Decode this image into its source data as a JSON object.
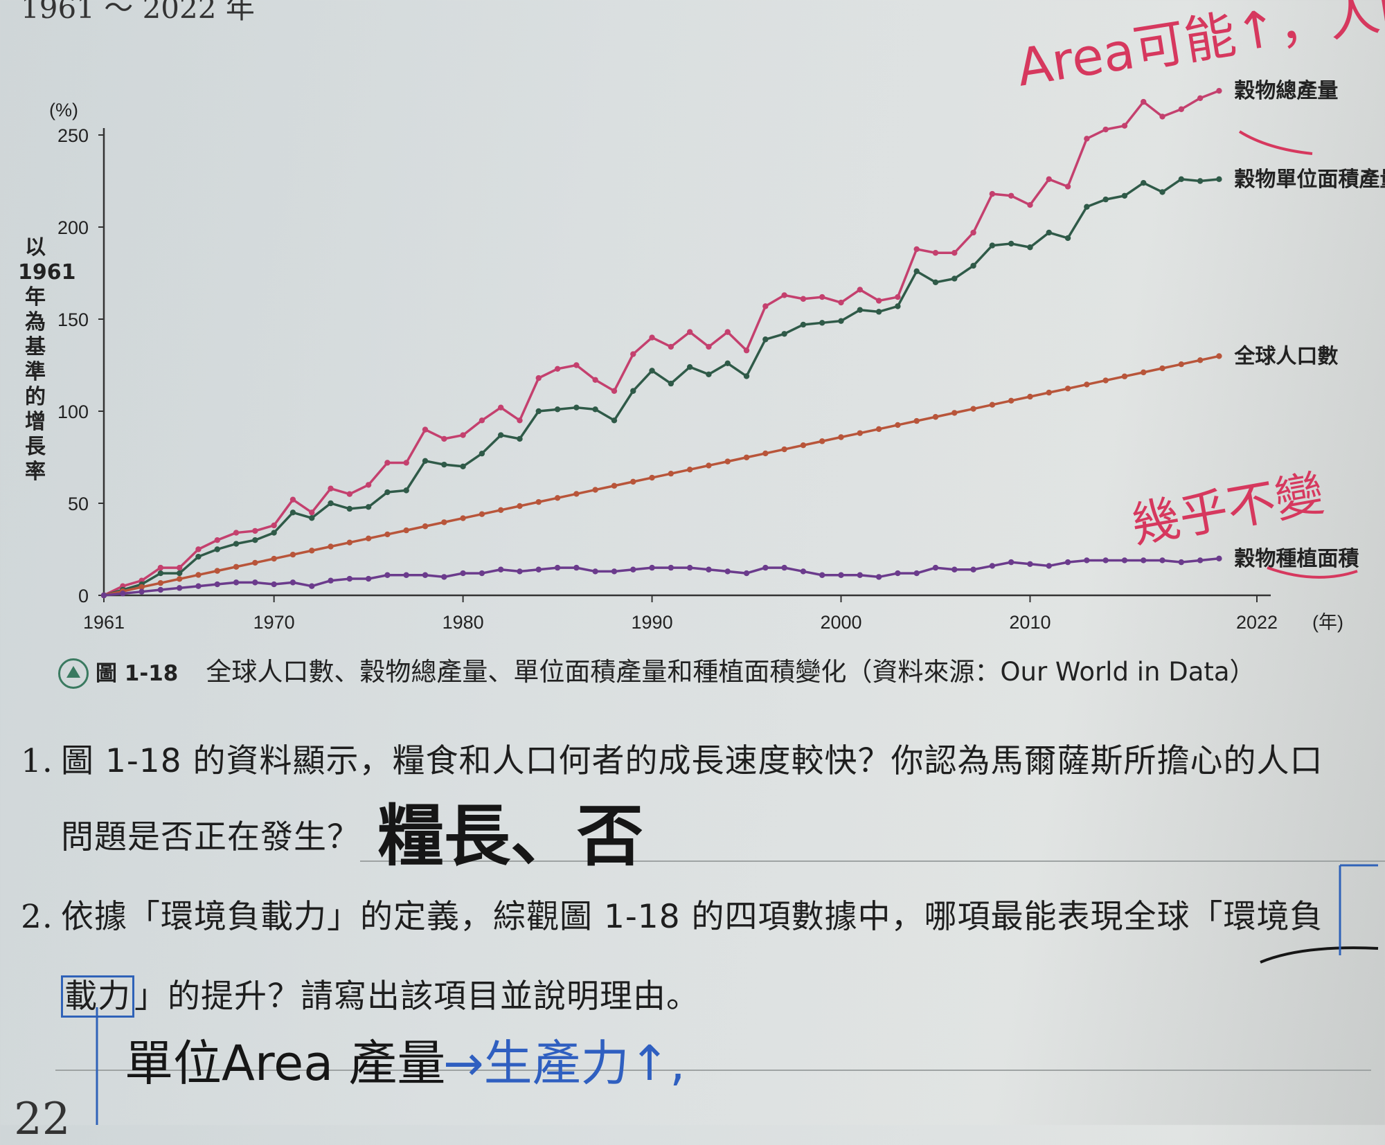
{
  "page_top_text": "1961 ～ 2022 年",
  "chart_data": {
    "type": "line",
    "y_unit": "(%)",
    "ylabel": "以1961年為基準的增長率",
    "xlabel": "(年)",
    "x_ticks": [
      "1961",
      "1970",
      "1980",
      "1990",
      "2000",
      "2010",
      "2022"
    ],
    "y_ticks": [
      "0",
      "50",
      "100",
      "150",
      "200",
      "250"
    ],
    "ylim": [
      0,
      250
    ],
    "xlim": [
      1961,
      2022
    ],
    "x": [
      1961,
      1962,
      1963,
      1964,
      1965,
      1966,
      1967,
      1968,
      1969,
      1970,
      1971,
      1972,
      1973,
      1974,
      1975,
      1976,
      1977,
      1978,
      1979,
      1980,
      1981,
      1982,
      1983,
      1984,
      1985,
      1986,
      1987,
      1988,
      1989,
      1990,
      1991,
      1992,
      1993,
      1994,
      1995,
      1996,
      1997,
      1998,
      1999,
      2000,
      2001,
      2002,
      2003,
      2004,
      2005,
      2006,
      2007,
      2008,
      2009,
      2010,
      2011,
      2012,
      2013,
      2014,
      2015,
      2016,
      2017,
      2018,
      2019,
      2020
    ],
    "series": [
      {
        "name": "穀物總產量",
        "color": "#c4406e",
        "values": [
          0,
          5,
          8,
          15,
          15,
          25,
          30,
          34,
          35,
          38,
          52,
          45,
          58,
          55,
          60,
          72,
          72,
          90,
          85,
          87,
          95,
          102,
          95,
          118,
          123,
          125,
          117,
          111,
          131,
          140,
          135,
          143,
          135,
          143,
          133,
          157,
          163,
          161,
          162,
          159,
          166,
          160,
          162,
          188,
          186,
          186,
          197,
          218,
          217,
          212,
          226,
          222,
          248,
          253,
          255,
          268,
          260,
          264,
          270,
          274
        ],
        "callout": false
      },
      {
        "name": "穀物單位面積產量",
        "color": "#2f5a48",
        "values": [
          0,
          3,
          6,
          12,
          12,
          21,
          25,
          28,
          30,
          34,
          45,
          42,
          50,
          47,
          48,
          56,
          57,
          73,
          71,
          70,
          77,
          87,
          85,
          100,
          101,
          102,
          101,
          95,
          111,
          122,
          115,
          124,
          120,
          126,
          119,
          139,
          142,
          147,
          148,
          149,
          155,
          154,
          157,
          176,
          170,
          172,
          179,
          190,
          191,
          189,
          197,
          194,
          211,
          215,
          217,
          224,
          219,
          226,
          225,
          226
        ]
      },
      {
        "name": "全球人口數",
        "color": "#b8553a",
        "values": [
          0,
          2.2,
          4.5,
          6.7,
          8.9,
          11.1,
          13.3,
          15.5,
          17.7,
          19.9,
          22.1,
          24.3,
          26.5,
          28.7,
          30.9,
          33.1,
          35.3,
          37.5,
          39.7,
          41.9,
          44.1,
          46.3,
          48.5,
          50.7,
          52.9,
          55.1,
          57.3,
          59.5,
          61.7,
          63.9,
          66.1,
          68.3,
          70.5,
          72.7,
          74.9,
          77.1,
          79.3,
          81.5,
          83.7,
          85.9,
          88.1,
          90.3,
          92.5,
          94.7,
          96.9,
          99.1,
          101.3,
          103.5,
          105.7,
          107.9,
          110.1,
          112.3,
          114.5,
          116.7,
          118.9,
          121.1,
          123.3,
          125.5,
          127.7,
          129.9
        ]
      },
      {
        "name": "穀物種植面積",
        "color": "#6b3b8c",
        "values": [
          0,
          1,
          2,
          3,
          4,
          5,
          6,
          7,
          7,
          6,
          7,
          5,
          8,
          9,
          9,
          11,
          11,
          11,
          10,
          12,
          12,
          14,
          13,
          14,
          15,
          15,
          13,
          13,
          14,
          15,
          15,
          15,
          14,
          13,
          12,
          15,
          15,
          13,
          11,
          11,
          11,
          10,
          12,
          12,
          15,
          14,
          14,
          16,
          18,
          17,
          16,
          18,
          19,
          19,
          19,
          19,
          19,
          18,
          19,
          20
        ]
      }
    ]
  },
  "caption": {
    "fig_no": "圖 1-18",
    "text": "全球人口數、穀物總產量、單位面積產量和種植面積變化（資料來源：Our World in Data）"
  },
  "questions": [
    {
      "num": "1.",
      "line1": "圖 1-18 的資料顯示，糧食和人口何者的成長速度較快？你認為馬爾薩斯所擔心的人口",
      "line2": "問題是否正在發生？"
    },
    {
      "num": "2.",
      "line1": "依據「環境負載力」的定義，綜觀圖 1-18 的四項數據中，哪項最能表現全球「環境負",
      "line2_a": "載力",
      "line2_b": "」的提升？請寫出該項目並說明理由。"
    }
  ],
  "handwriting": {
    "red_top": "Area可能↑，人的Area被壓",
    "red_flat": "幾乎不變",
    "answer1": "糧長、否",
    "answer2_dark": "單位Area 產量",
    "answer2_blue": "→生產力↑,"
  },
  "page_number": "22"
}
